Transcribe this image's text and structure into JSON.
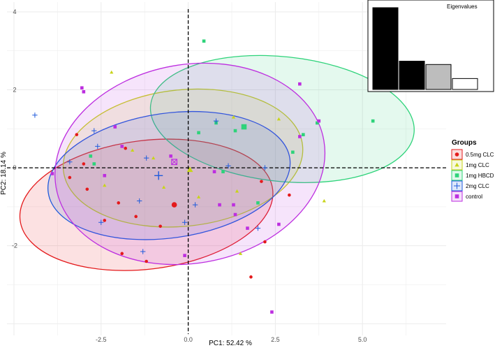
{
  "chart_data": {
    "type": "scatter",
    "title": "",
    "xlabel": "PC1:  52.42 %",
    "ylabel": "PC2:  18.14 %",
    "xlim": [
      -5.2,
      7.4
    ],
    "ylim": [
      -4.3,
      4.25
    ],
    "x_ticks": [
      -2.5,
      0.0,
      2.5,
      5.0
    ],
    "y_ticks": [
      -2,
      0,
      2,
      4
    ],
    "x_tick_labels": [
      "-2.5",
      "0.0",
      "2.5",
      "5.0"
    ],
    "y_tick_labels": [
      "-2",
      "0",
      "2",
      "4"
    ],
    "grid": true,
    "reference_lines": {
      "x": 0,
      "y": 0,
      "style": "dashed"
    },
    "legend": {
      "title": "Groups",
      "position": "right"
    },
    "series": [
      {
        "name": "0.5mg CLC",
        "color": "#e41a1c",
        "shape": "circle",
        "points": [
          [
            -3.4,
            -0.25
          ],
          [
            -2.9,
            -0.55
          ],
          [
            -2.4,
            -1.35
          ],
          [
            -1.9,
            -2.2
          ],
          [
            -1.5,
            -1.25
          ],
          [
            -1.2,
            -2.4
          ],
          [
            -0.8,
            -1.5
          ],
          [
            -2.0,
            -0.9
          ],
          [
            -3.0,
            0.1
          ],
          [
            -1.8,
            0.5
          ],
          [
            2.1,
            -0.35
          ],
          [
            2.9,
            -0.7
          ],
          [
            1.8,
            -2.8
          ],
          [
            2.2,
            -1.9
          ],
          [
            -3.2,
            0.85
          ]
        ],
        "centroid": [
          -0.4,
          -0.95
        ],
        "ellipse": {
          "cx": -1.2,
          "cy": -0.95,
          "rx": 3.65,
          "ry": 1.65,
          "angle": -7
        }
      },
      {
        "name": "1mg CLC",
        "color": "#c8d41a",
        "shape": "triangle",
        "points": [
          [
            -2.2,
            2.45
          ],
          [
            -1.6,
            0.45
          ],
          [
            -2.4,
            -0.45
          ],
          [
            -1.0,
            0.25
          ],
          [
            0.3,
            -0.75
          ],
          [
            1.3,
            1.3
          ],
          [
            1.4,
            -0.6
          ],
          [
            2.6,
            1.25
          ],
          [
            3.9,
            -0.85
          ],
          [
            1.5,
            -2.2
          ],
          [
            -0.7,
            -0.5
          ]
        ],
        "centroid": [
          0.05,
          -0.05
        ],
        "ellipse": {
          "cx": -0.15,
          "cy": 0.25,
          "rx": 3.45,
          "ry": 1.75,
          "angle": -6
        }
      },
      {
        "name": "1mg HBCD",
        "color": "#2ed37a",
        "shape": "square",
        "points": [
          [
            -2.8,
            0.3
          ],
          [
            -2.7,
            0.1
          ],
          [
            0.3,
            0.9
          ],
          [
            0.8,
            1.15
          ],
          [
            1.6,
            1.05
          ],
          [
            1.35,
            0.95
          ],
          [
            3.0,
            0.4
          ],
          [
            3.3,
            0.85
          ],
          [
            3.7,
            1.15
          ],
          [
            5.3,
            1.2
          ],
          [
            0.45,
            3.25
          ],
          [
            1.0,
            -0.1
          ],
          [
            2.0,
            -0.9
          ]
        ],
        "centroid": [
          1.6,
          1.05
        ],
        "ellipse": {
          "cx": 2.7,
          "cy": 1.25,
          "rx": 3.8,
          "ry": 1.6,
          "angle": 6
        }
      },
      {
        "name": "2mg CLC",
        "color": "#1f5bdc",
        "shape": "plus",
        "points": [
          [
            -4.4,
            1.35
          ],
          [
            -2.7,
            0.95
          ],
          [
            -2.6,
            0.55
          ],
          [
            -3.4,
            0.15
          ],
          [
            -2.5,
            -1.4
          ],
          [
            -1.2,
            0.25
          ],
          [
            -1.4,
            -0.85
          ],
          [
            -0.1,
            -1.4
          ],
          [
            0.2,
            -0.95
          ],
          [
            0.8,
            1.2
          ],
          [
            1.15,
            0.05
          ],
          [
            2.0,
            -1.55
          ],
          [
            2.2,
            0.0
          ],
          [
            -1.3,
            -2.15
          ]
        ],
        "centroid": [
          -0.85,
          -0.2
        ],
        "ellipse": {
          "cx": -0.55,
          "cy": -0.2,
          "rx": 3.5,
          "ry": 1.6,
          "angle": -8
        }
      },
      {
        "name": "control",
        "color": "#bd2ee0",
        "shape": "square",
        "points": [
          [
            -3.05,
            2.05
          ],
          [
            -3.0,
            1.95
          ],
          [
            -2.1,
            1.05
          ],
          [
            -1.9,
            0.55
          ],
          [
            -3.9,
            -0.15
          ],
          [
            -2.4,
            -0.2
          ],
          [
            0.75,
            -0.1
          ],
          [
            1.3,
            -0.95
          ],
          [
            1.35,
            -1.2
          ],
          [
            1.7,
            -1.55
          ],
          [
            2.6,
            -1.45
          ],
          [
            3.2,
            0.8
          ],
          [
            3.2,
            2.15
          ],
          [
            3.75,
            1.2
          ],
          [
            -0.1,
            -2.25
          ],
          [
            0.9,
            -0.95
          ],
          [
            2.4,
            -3.7
          ],
          [
            -0.5,
            0.3
          ]
        ],
        "centroid": [
          -0.4,
          0.15
        ],
        "ellipse": {
          "cx": 0.05,
          "cy": 0.1,
          "rx": 3.9,
          "ry": 2.55,
          "angle": -10
        }
      }
    ],
    "inset": {
      "title": "Eigenvalues",
      "values": [
        0.5242,
        0.1814,
        0.16,
        0.07
      ],
      "fills": [
        "#000000",
        "#000000",
        "#bdbdbd",
        "#ffffff"
      ]
    }
  }
}
